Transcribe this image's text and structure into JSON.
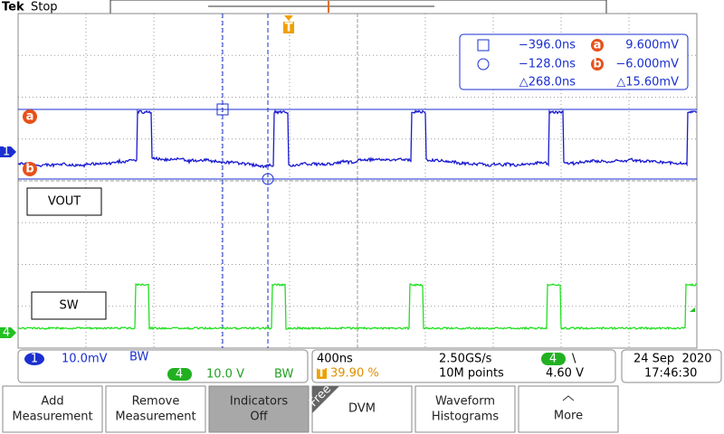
{
  "header": {
    "brand": "Tek",
    "status": "Stop"
  },
  "markers": {
    "trigger": "T",
    "a": "a",
    "b": "b",
    "ch1": "1",
    "ch4": "4"
  },
  "cursor_readout": {
    "rows": [
      {
        "time": "−396.0ns",
        "marker": "a",
        "value": "9.600mV"
      },
      {
        "time": "−128.0ns",
        "marker": "b",
        "value": "−6.000mV"
      },
      {
        "time": "△268.0ns",
        "value": "△15.60mV"
      }
    ]
  },
  "labels": [
    "VOUT",
    "SW"
  ],
  "channel_status": {
    "ch1": {
      "number": "1",
      "scale": "10.0mV",
      "bandwidth": "BW"
    },
    "ch4": {
      "number": "4",
      "scale": "10.0 V",
      "bandwidth": "BW"
    }
  },
  "acquisition": {
    "timebase": "400ns",
    "trigger_marker": "T",
    "trigger_position": "39.90 %",
    "sample_rate": "2.50GS/s",
    "record_length": "10M points",
    "trigger_channel": "4",
    "trigger_slope": "\\",
    "trigger_level": "4.60 V"
  },
  "datetime": {
    "date": "24 Sep  2020",
    "time": "17:46:30"
  },
  "menu": [
    {
      "lines": [
        "Add",
        "Measurement"
      ]
    },
    {
      "lines": [
        "Remove",
        "Measurement"
      ]
    },
    {
      "lines": [
        "Indicators",
        "Off"
      ]
    },
    {
      "lines": [
        "DVM"
      ],
      "tag": "Free"
    },
    {
      "lines": [
        "Waveform",
        "Histograms"
      ]
    },
    {
      "lines": [
        "More"
      ]
    }
  ]
}
